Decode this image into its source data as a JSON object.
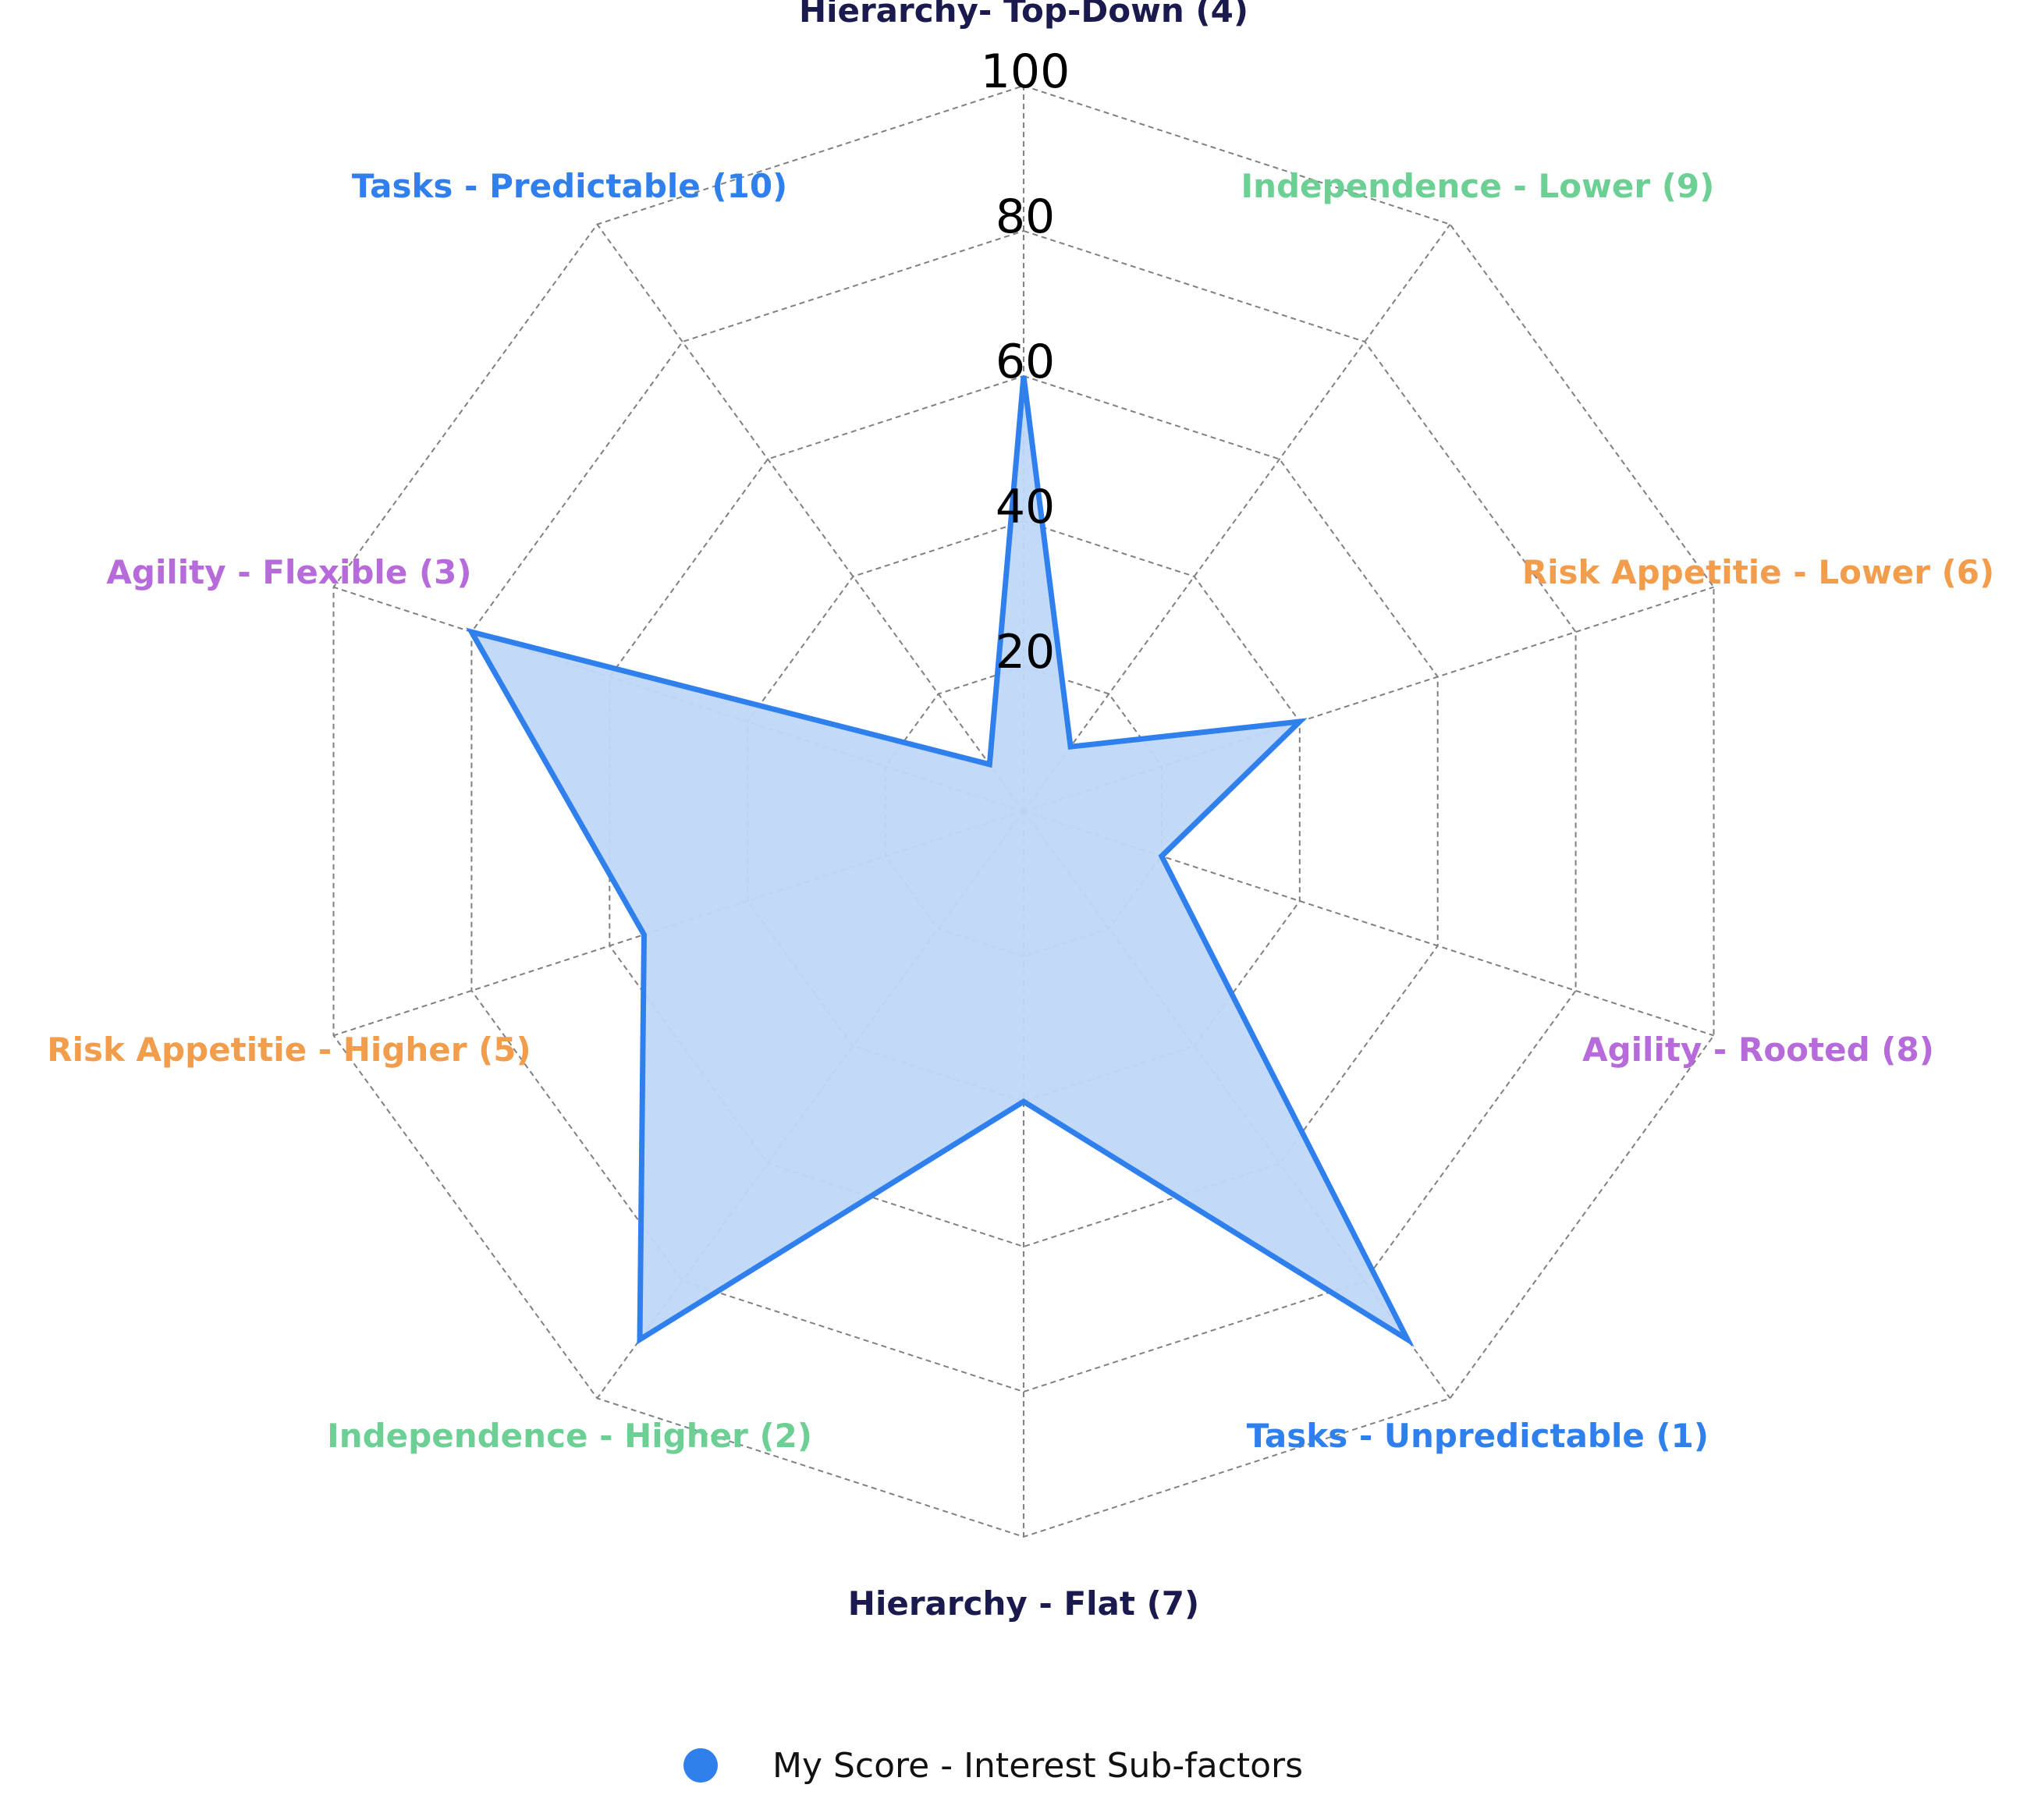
{
  "chart_data": {
    "type": "radar",
    "title": "",
    "rlim": [
      0,
      100
    ],
    "rticks": [
      20,
      40,
      60,
      80,
      100
    ],
    "grid": true,
    "legend_position": "bottom-center",
    "axes": [
      {
        "label": "Hierarchy- Top-Down (4)",
        "color": "#1a1a4e"
      },
      {
        "label": "Independence - Lower (9)",
        "color": "#6ccf94"
      },
      {
        "label": "Risk Appetitie - Lower (6)",
        "color": "#f29d4b"
      },
      {
        "label": "Agility - Rooted (8)",
        "color": "#b76bdb"
      },
      {
        "label": "Tasks - Unpredictable (1)",
        "color": "#2f80ed"
      },
      {
        "label": "Hierarchy - Flat (7)",
        "color": "#1a1a4e"
      },
      {
        "label": "Independence - Higher (2)",
        "color": "#6ccf94"
      },
      {
        "label": "Risk Appetitie - Higher (5)",
        "color": "#f29d4b"
      },
      {
        "label": "Agility - Flexible (3)",
        "color": "#b76bdb"
      },
      {
        "label": "Tasks - Predictable (10)",
        "color": "#2f80ed"
      }
    ],
    "series": [
      {
        "name": "My Score - Interest Sub-factors",
        "color": "#2f80ed",
        "fill": "#bfd8f8",
        "values": [
          60,
          11,
          40,
          20,
          90,
          40,
          90,
          55,
          80,
          8
        ]
      }
    ]
  }
}
